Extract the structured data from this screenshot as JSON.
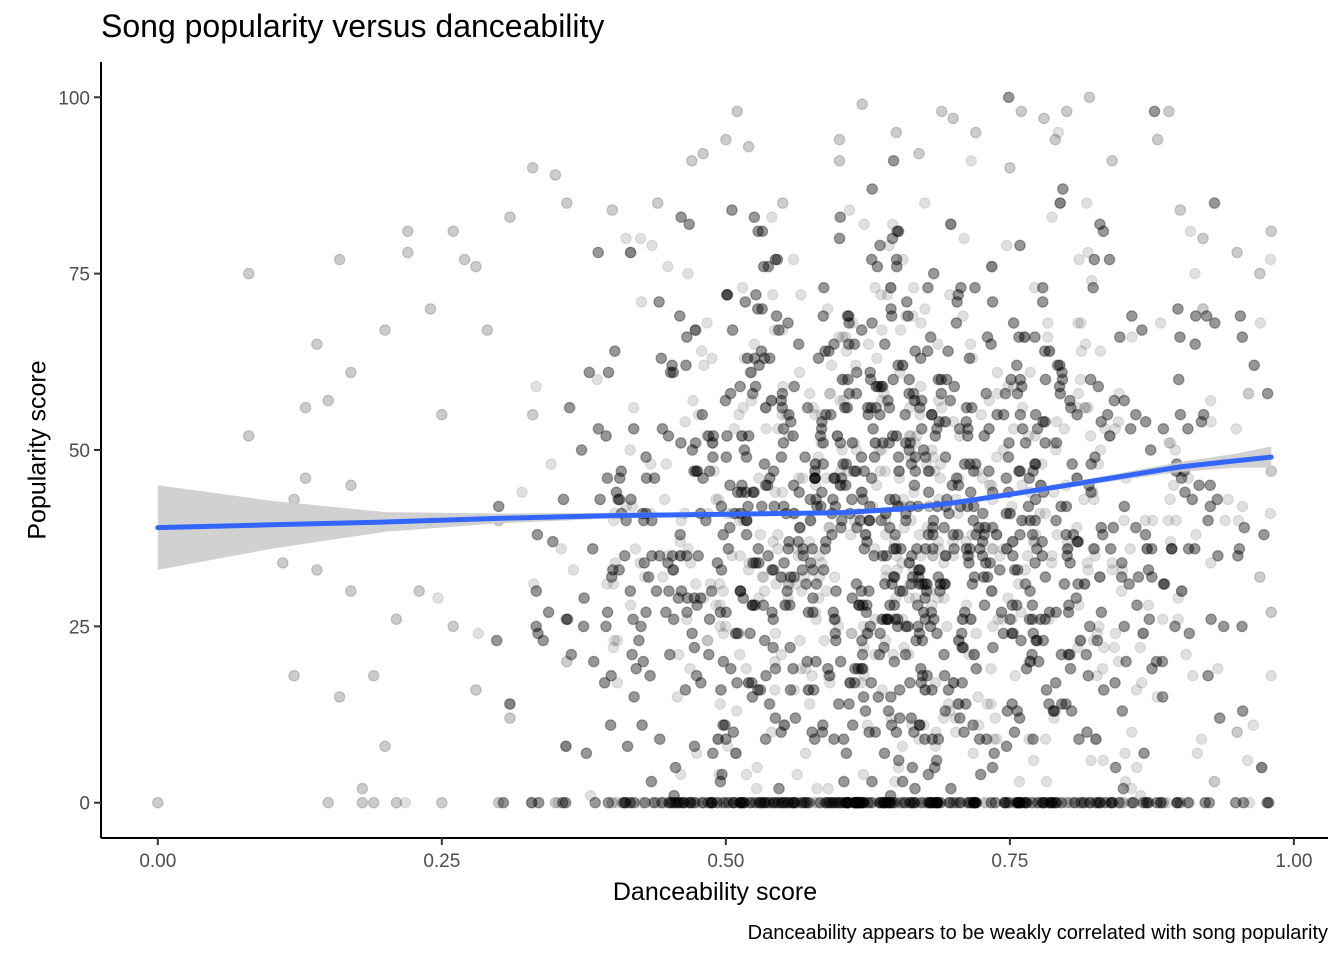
{
  "chart_data": {
    "type": "scatter",
    "title": "Song popularity versus danceability",
    "xlabel": "Danceability score",
    "ylabel": "Popularity score",
    "caption": "Danceability appears to be weakly correlated with song popularity",
    "xlim": [
      -0.05,
      1.03
    ],
    "ylim": [
      -5,
      105
    ],
    "x_ticks": [
      0.0,
      0.25,
      0.5,
      0.75,
      1.0
    ],
    "x_tick_labels": [
      "0.00",
      "0.25",
      "0.50",
      "0.75",
      "1.00"
    ],
    "y_ticks": [
      0,
      25,
      50,
      75,
      100
    ],
    "y_tick_labels": [
      "0",
      "25",
      "50",
      "75",
      "100"
    ],
    "grid": false,
    "point_color": "#000000",
    "point_alpha": 0.12,
    "smooth_color": "#3366FF",
    "ribbon_color": "#cccccc",
    "points_sample": [
      [
        0.0,
        0
      ],
      [
        0.08,
        75
      ],
      [
        0.08,
        52
      ],
      [
        0.11,
        34
      ],
      [
        0.12,
        18
      ],
      [
        0.12,
        43
      ],
      [
        0.13,
        56
      ],
      [
        0.14,
        65
      ],
      [
        0.15,
        0
      ],
      [
        0.15,
        57
      ],
      [
        0.16,
        77
      ],
      [
        0.17,
        61
      ],
      [
        0.17,
        45
      ],
      [
        0.18,
        0
      ],
      [
        0.19,
        0
      ],
      [
        0.2,
        67
      ],
      [
        0.21,
        0
      ],
      [
        0.22,
        81
      ],
      [
        0.22,
        78
      ],
      [
        0.23,
        30
      ],
      [
        0.24,
        70
      ],
      [
        0.25,
        0
      ],
      [
        0.25,
        55
      ],
      [
        0.26,
        81
      ],
      [
        0.27,
        77
      ],
      [
        0.28,
        76
      ],
      [
        0.29,
        67
      ],
      [
        0.3,
        0
      ],
      [
        0.31,
        83
      ],
      [
        0.33,
        90
      ],
      [
        0.35,
        89
      ],
      [
        0.36,
        85
      ],
      [
        0.4,
        84
      ],
      [
        0.44,
        85
      ],
      [
        0.47,
        91
      ],
      [
        0.48,
        92
      ],
      [
        0.5,
        94
      ],
      [
        0.51,
        98
      ],
      [
        0.52,
        93
      ],
      [
        0.55,
        85
      ],
      [
        0.6,
        94
      ],
      [
        0.6,
        91
      ],
      [
        0.62,
        99
      ],
      [
        0.65,
        95
      ],
      [
        0.67,
        92
      ],
      [
        0.69,
        98
      ],
      [
        0.7,
        97
      ],
      [
        0.72,
        95
      ],
      [
        0.75,
        90
      ],
      [
        0.76,
        98
      ],
      [
        0.78,
        97
      ],
      [
        0.79,
        94
      ],
      [
        0.8,
        98
      ],
      [
        0.82,
        100
      ],
      [
        0.84,
        91
      ],
      [
        0.88,
        94
      ],
      [
        0.89,
        98
      ],
      [
        0.9,
        84
      ],
      [
        0.92,
        80
      ],
      [
        0.95,
        78
      ],
      [
        0.97,
        75
      ],
      [
        0.98,
        81
      ],
      [
        0.98,
        47
      ],
      [
        0.98,
        27
      ],
      [
        0.97,
        32
      ],
      [
        0.96,
        58
      ],
      [
        0.95,
        10
      ],
      [
        0.93,
        3
      ],
      [
        0.92,
        70
      ],
      [
        0.9,
        0
      ],
      [
        0.85,
        0
      ],
      [
        0.8,
        0
      ],
      [
        0.75,
        0
      ],
      [
        0.7,
        0
      ],
      [
        0.65,
        0
      ],
      [
        0.6,
        0
      ],
      [
        0.55,
        0
      ],
      [
        0.5,
        0
      ],
      [
        0.45,
        0
      ],
      [
        0.4,
        0
      ],
      [
        0.35,
        0
      ],
      [
        0.31,
        12
      ],
      [
        0.28,
        16
      ],
      [
        0.26,
        25
      ],
      [
        0.24,
        40
      ],
      [
        0.2,
        8
      ],
      [
        0.18,
        2
      ],
      [
        0.19,
        18
      ],
      [
        0.21,
        26
      ],
      [
        0.17,
        30
      ],
      [
        0.16,
        15
      ],
      [
        0.14,
        33
      ],
      [
        0.13,
        46
      ],
      [
        0.3,
        40
      ],
      [
        0.33,
        55
      ],
      [
        0.36,
        20
      ]
    ],
    "smooth_line": {
      "x": [
        0.0,
        0.1,
        0.2,
        0.3,
        0.4,
        0.5,
        0.6,
        0.65,
        0.7,
        0.75,
        0.8,
        0.85,
        0.9,
        0.95,
        0.98
      ],
      "y": [
        39,
        39.4,
        39.8,
        40.3,
        40.7,
        40.9,
        41.1,
        41.6,
        42.5,
        43.7,
        45.0,
        46.3,
        47.6,
        48.5,
        49.0
      ],
      "lower": [
        33,
        36.0,
        38.4,
        39.6,
        40.3,
        40.6,
        40.8,
        41.3,
        42.2,
        43.4,
        44.6,
        45.8,
        46.9,
        47.5,
        47.5
      ],
      "upper": [
        45,
        42.8,
        41.2,
        41.0,
        41.1,
        41.2,
        41.4,
        41.9,
        42.8,
        44.0,
        45.4,
        46.8,
        48.3,
        49.5,
        50.5
      ]
    }
  }
}
